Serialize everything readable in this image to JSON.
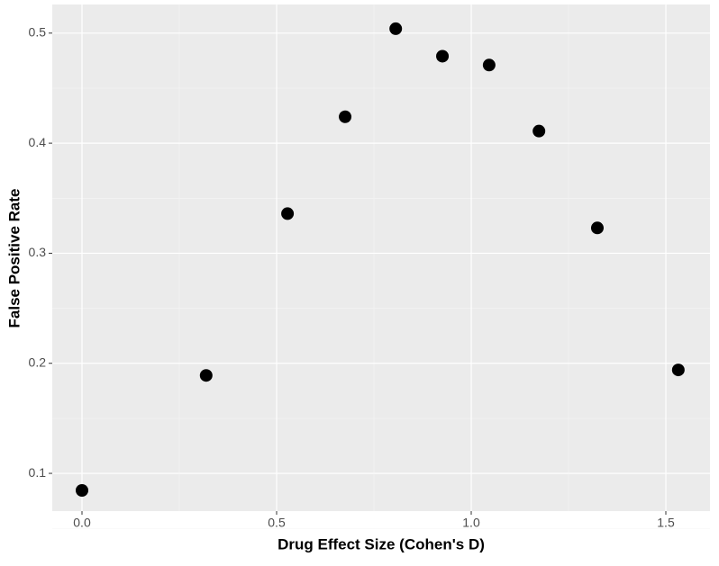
{
  "chart_data": {
    "type": "scatter",
    "x_label": "Drug Effect Size (Cohen's D)",
    "y_label": "False Positive Rate",
    "x": [
      0.0,
      0.319,
      0.528,
      0.676,
      0.806,
      0.926,
      1.046,
      1.174,
      1.324,
      1.532
    ],
    "values": [
      0.0845,
      0.189,
      0.336,
      0.424,
      0.504,
      0.479,
      0.471,
      0.411,
      0.323,
      0.194
    ],
    "color": "#000000",
    "xlim": [
      -0.0764,
      1.6134
    ],
    "ylim": [
      0.0657,
      0.526
    ],
    "xticks": [
      {
        "value": 0,
        "label": "0.0"
      },
      {
        "value": 0.5,
        "label": "0.5"
      },
      {
        "value": 1,
        "label": "1.0"
      },
      {
        "value": 1.5,
        "label": "1.5"
      }
    ],
    "yticks": [
      0.1,
      0.2,
      0.3,
      0.4,
      0.5
    ],
    "grid": true
  }
}
